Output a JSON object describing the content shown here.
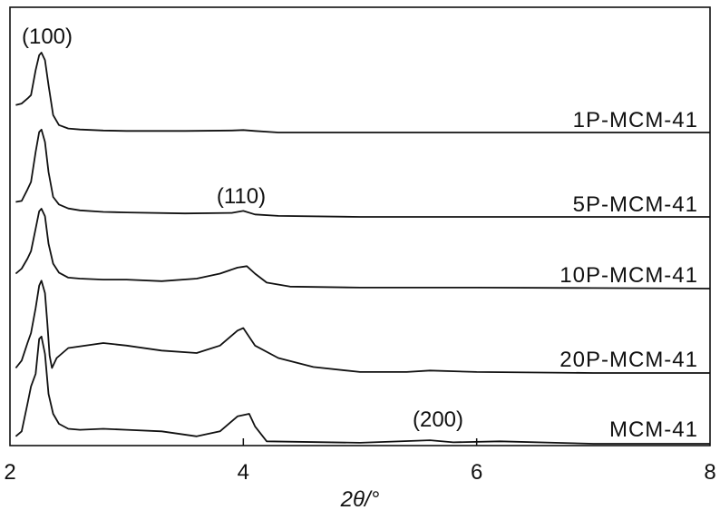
{
  "chart_data": {
    "type": "line",
    "title": "",
    "xlabel": "2θ/°",
    "ylabel": "",
    "xlim": [
      2,
      8
    ],
    "x_ticks": [
      2,
      4,
      6,
      8
    ],
    "x_tick_labels": [
      "2",
      "4",
      "6",
      "8"
    ],
    "grid": false,
    "legend": "inline labels at right end of each curve",
    "colors": {
      "line": "#111111",
      "axis": "#111111"
    },
    "annotations": [
      {
        "text": "(100)",
        "x": 2.27,
        "series": "1P-MCM-41"
      },
      {
        "text": "(110)",
        "x": 4.0,
        "series": "5P-MCM-41"
      },
      {
        "text": "(200)",
        "x": 5.6,
        "series": "MCM-41"
      }
    ],
    "series": [
      {
        "name": "1P-MCM-41",
        "x": [
          2.05,
          2.1,
          2.15,
          2.18,
          2.22,
          2.25,
          2.27,
          2.3,
          2.33,
          2.37,
          2.42,
          2.5,
          2.6,
          2.8,
          3.0,
          3.5,
          3.9,
          4.0,
          4.1,
          4.3,
          5.0,
          6.0,
          7.0,
          8.0
        ],
        "y": [
          0.55,
          0.58,
          0.68,
          0.75,
          1.25,
          1.55,
          1.6,
          1.45,
          0.95,
          0.35,
          0.15,
          0.08,
          0.06,
          0.04,
          0.03,
          0.03,
          0.04,
          0.05,
          0.03,
          0.0,
          0.0,
          0.0,
          0.0,
          0.0
        ]
      },
      {
        "name": "5P-MCM-41",
        "x": [
          2.05,
          2.1,
          2.15,
          2.18,
          2.22,
          2.25,
          2.27,
          2.3,
          2.33,
          2.37,
          2.42,
          2.5,
          2.6,
          2.8,
          3.0,
          3.5,
          3.9,
          4.0,
          4.1,
          4.3,
          5.0,
          6.0,
          7.0,
          8.0
        ],
        "y": [
          0.3,
          0.32,
          0.55,
          0.7,
          1.3,
          1.7,
          1.75,
          1.5,
          0.9,
          0.4,
          0.25,
          0.17,
          0.13,
          0.1,
          0.09,
          0.07,
          0.08,
          0.12,
          0.05,
          0.02,
          0.0,
          0.0,
          0.0,
          0.0
        ]
      },
      {
        "name": "10P-MCM-41",
        "x": [
          2.05,
          2.1,
          2.15,
          2.18,
          2.22,
          2.25,
          2.27,
          2.3,
          2.33,
          2.37,
          2.42,
          2.5,
          2.6,
          2.8,
          3.0,
          3.3,
          3.6,
          3.8,
          3.95,
          4.03,
          4.1,
          4.2,
          4.4,
          5.0,
          6.0,
          7.0,
          8.0
        ],
        "y": [
          0.3,
          0.4,
          0.6,
          0.75,
          1.2,
          1.55,
          1.6,
          1.45,
          0.9,
          0.5,
          0.32,
          0.22,
          0.2,
          0.18,
          0.18,
          0.15,
          0.2,
          0.3,
          0.42,
          0.45,
          0.3,
          0.12,
          0.04,
          0.02,
          0.02,
          0.01,
          0.0
        ]
      },
      {
        "name": "20P-MCM-41",
        "x": [
          2.05,
          2.1,
          2.15,
          2.18,
          2.22,
          2.25,
          2.27,
          2.3,
          2.32,
          2.34,
          2.36,
          2.4,
          2.5,
          2.8,
          3.0,
          3.3,
          3.6,
          3.8,
          3.95,
          4.0,
          4.1,
          4.3,
          4.6,
          5.0,
          5.4,
          5.6,
          6.0,
          7.0,
          8.0
        ],
        "y": [
          0.1,
          0.25,
          0.6,
          0.8,
          1.3,
          1.75,
          1.85,
          1.6,
          1.0,
          0.35,
          0.1,
          0.3,
          0.5,
          0.6,
          0.55,
          0.45,
          0.4,
          0.55,
          0.85,
          0.9,
          0.55,
          0.3,
          0.12,
          0.02,
          0.02,
          0.05,
          0.02,
          0.0,
          0.0
        ]
      },
      {
        "name": "MCM-41",
        "x": [
          2.05,
          2.1,
          2.15,
          2.18,
          2.22,
          2.25,
          2.27,
          2.3,
          2.33,
          2.37,
          2.42,
          2.5,
          2.6,
          2.8,
          3.0,
          3.3,
          3.6,
          3.8,
          3.95,
          4.05,
          4.1,
          4.2,
          5.0,
          5.6,
          5.8,
          6.2,
          7.0,
          8.0
        ],
        "y": [
          0.15,
          0.25,
          0.8,
          1.15,
          1.4,
          2.1,
          2.15,
          1.8,
          1.0,
          0.6,
          0.4,
          0.3,
          0.28,
          0.3,
          0.28,
          0.25,
          0.15,
          0.25,
          0.55,
          0.6,
          0.35,
          0.05,
          0.02,
          0.07,
          0.03,
          0.05,
          0.0,
          0.0
        ]
      }
    ]
  }
}
